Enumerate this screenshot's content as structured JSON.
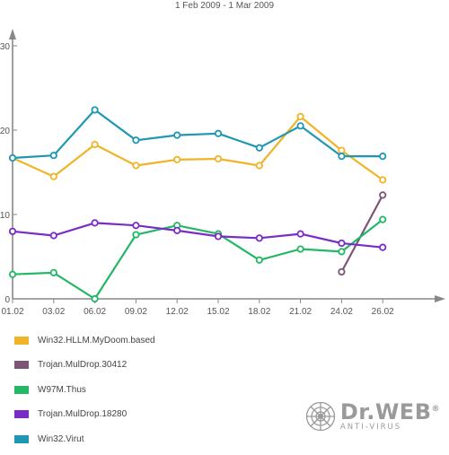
{
  "chart_data": {
    "type": "line",
    "subtitle": "1 Feb 2009 - 1 Mar 2009",
    "categories": [
      "01.02",
      "03.02",
      "06.02",
      "09.02",
      "12.02",
      "15.02",
      "18.02",
      "21.02",
      "24.02",
      "26.02"
    ],
    "ylim": [
      0,
      30
    ],
    "yticks": [
      "0",
      "10",
      "20",
      "30"
    ],
    "grid": false,
    "legend_position": "bottom-left",
    "series": [
      {
        "name": "Win32.HLLM.MyDoom.based",
        "color": "#f0b429",
        "values": [
          16.7,
          14.5,
          18.3,
          15.8,
          16.5,
          16.6,
          15.8,
          21.6,
          17.6,
          14.1
        ]
      },
      {
        "name": "Trojan.MulDrop.30412",
        "color": "#7b5775",
        "values": [
          null,
          null,
          null,
          null,
          null,
          null,
          null,
          null,
          3.2,
          12.3
        ]
      },
      {
        "name": "W97M.Thus",
        "color": "#22b866",
        "values": [
          2.9,
          3.1,
          0.0,
          7.6,
          8.7,
          7.7,
          4.6,
          5.9,
          5.6,
          9.4
        ]
      },
      {
        "name": "Trojan.MulDrop.18280",
        "color": "#7b2bc6",
        "values": [
          8.0,
          7.5,
          9.0,
          8.7,
          8.1,
          7.4,
          7.2,
          7.7,
          6.6,
          6.1
        ]
      },
      {
        "name": "Win32.Virut",
        "color": "#1e96b4",
        "values": [
          16.7,
          17.0,
          22.4,
          18.8,
          19.4,
          19.6,
          17.9,
          20.5,
          16.9,
          16.9
        ]
      }
    ]
  },
  "logo": {
    "name": "Dr.WEB",
    "reg": "®",
    "subtitle": "ANTI-VIRUS"
  }
}
